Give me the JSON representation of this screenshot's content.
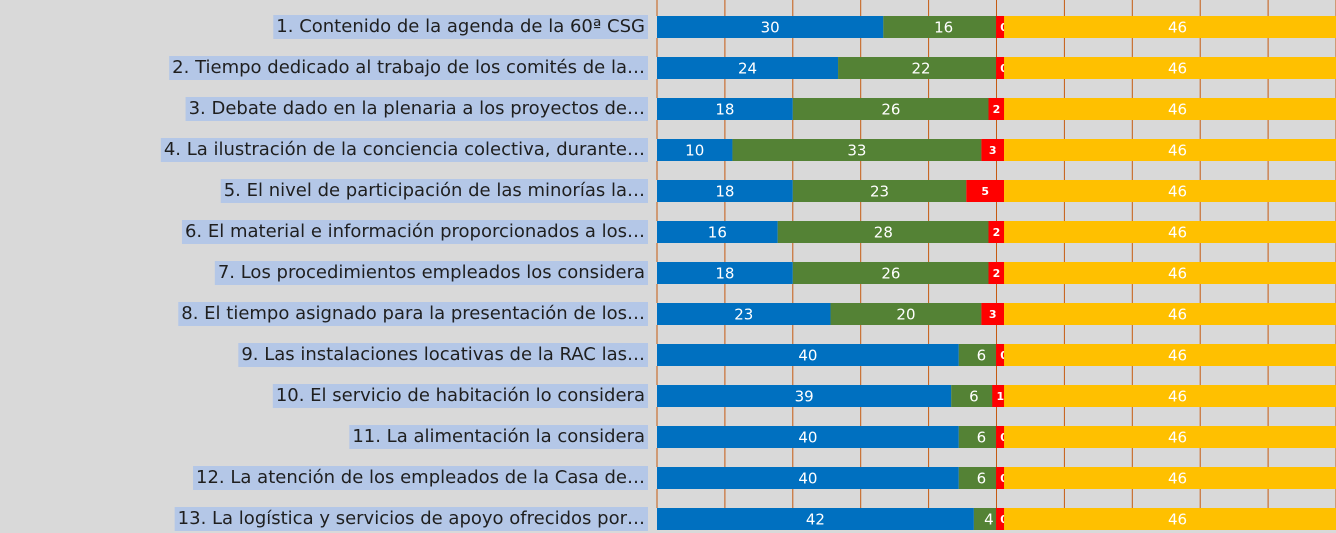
{
  "chart_data": {
    "type": "stacked-bar",
    "orientation": "horizontal",
    "categories": [
      "1. Contenido de la  agenda de la 60ª CSG",
      "2. Tiempo dedicado al trabajo de los  comités de la…",
      "3. Debate  dado en la  plenaria a los proyectos de…",
      "4. La ilustración de la conciencia  colectiva, durante…",
      "5. El nivel de participación de las  minorías la…",
      "6. El material e información proporcionados a los…",
      "7.  Los procedimientos empleados los  considera",
      "8. El tiempo asignado para la  presentación de los…",
      "9.  Las instalaciones  locativas de  la  RAC las…",
      "10. El servicio de  habitación lo  considera",
      "11.  La alimentación la considera",
      "12. La atención de los empleados  de la  Casa de…",
      "13. La logística y servicios de  apoyo ofrecidos  por…"
    ],
    "series": [
      {
        "color": "#0070c0",
        "values": [
          30,
          24,
          18,
          10,
          18,
          16,
          18,
          23,
          40,
          39,
          40,
          40,
          42
        ]
      },
      {
        "color": "#548235",
        "values": [
          16,
          22,
          26,
          33,
          23,
          28,
          26,
          20,
          6,
          6,
          6,
          6,
          4
        ]
      },
      {
        "color": "#ff0000",
        "values": [
          0,
          0,
          2,
          3,
          5,
          2,
          2,
          3,
          0,
          1,
          0,
          0,
          0
        ]
      },
      {
        "color": "#ffc000",
        "values": [
          46,
          46,
          46,
          46,
          46,
          46,
          46,
          46,
          46,
          46,
          46,
          46,
          46
        ]
      }
    ],
    "xlim": [
      0,
      90
    ],
    "xticks": [
      0,
      9,
      18,
      27,
      36,
      45,
      54,
      63,
      72,
      81,
      90
    ],
    "grid": true,
    "grid_color": "#c55a11"
  }
}
